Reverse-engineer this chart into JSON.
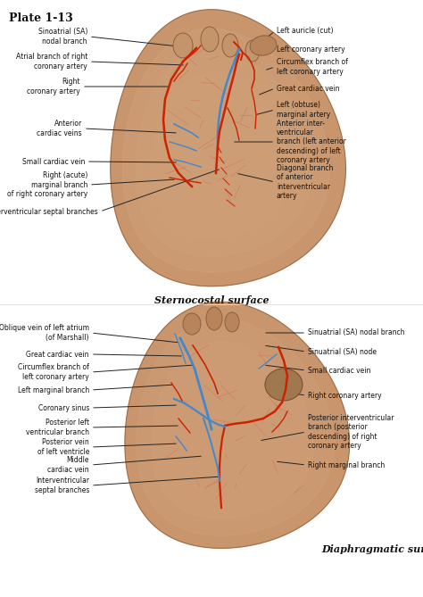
{
  "title": "Plate 1-13",
  "bg_color": "#ffffff",
  "fig_width": 4.74,
  "fig_height": 6.69,
  "top_subtitle": "Sternocostal surface",
  "bottom_subtitle": "Diaphragmatic surface",
  "heart_color": "#c8956c",
  "heart_color2": "#b8845c",
  "vessel_red": "#cc2200",
  "vessel_blue": "#4488cc",
  "label_fontsize": 5.5,
  "subtitle_fontsize": 8.0,
  "title_fontsize": 9.0
}
